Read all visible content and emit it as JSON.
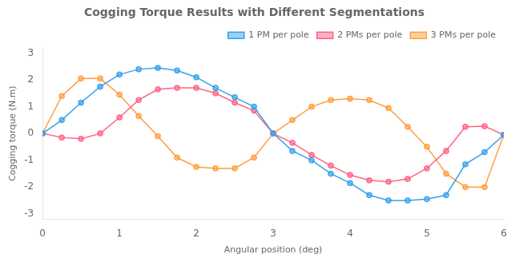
{
  "chart_data": {
    "type": "line",
    "title": "Cogging Torque Results with Different Segmentations",
    "x_label": "Angular position (deg)",
    "y_label": "Cogging torque (N.m)",
    "x": [
      0,
      0.25,
      0.5,
      0.75,
      1.0,
      1.25,
      1.5,
      1.75,
      2.0,
      2.25,
      2.5,
      2.75,
      3.0,
      3.25,
      3.5,
      3.75,
      4.0,
      4.25,
      4.5,
      4.75,
      5.0,
      5.25,
      5.5,
      5.75,
      6.0
    ],
    "series": [
      {
        "name": "1 PM per pole",
        "values": [
          0,
          0.5,
          1.15,
          1.75,
          2.2,
          2.4,
          2.45,
          2.35,
          2.1,
          1.7,
          1.35,
          1.0,
          0.0,
          -0.65,
          -1.0,
          -1.5,
          -1.85,
          -2.3,
          -2.5,
          -2.5,
          -2.45,
          -2.3,
          -1.15,
          -0.7,
          -0.05
        ]
      },
      {
        "name": "2 PMs per pole",
        "values": [
          0,
          -0.15,
          -0.2,
          0.0,
          0.6,
          1.25,
          1.65,
          1.7,
          1.7,
          1.5,
          1.15,
          0.85,
          0.0,
          -0.35,
          -0.8,
          -1.2,
          -1.55,
          -1.75,
          -1.8,
          -1.7,
          -1.3,
          -0.65,
          0.25,
          0.27,
          -0.05
        ]
      },
      {
        "name": "3 PMs per pole",
        "values": [
          0,
          1.4,
          2.05,
          2.05,
          1.45,
          0.65,
          -0.1,
          -0.9,
          -1.25,
          -1.3,
          -1.3,
          -0.9,
          0.0,
          0.5,
          1.0,
          1.25,
          1.3,
          1.25,
          0.95,
          0.25,
          -0.5,
          -1.5,
          -2.0,
          -2.0,
          -0.05
        ]
      }
    ],
    "xlim": [
      0,
      6
    ],
    "ylim": [
      -3.2,
      3.2
    ],
    "xticks": [
      0,
      1,
      2,
      3,
      4,
      5,
      6
    ],
    "yticks": [
      -3,
      -2,
      -1,
      0,
      1,
      2,
      3
    ],
    "marker": "o",
    "grid": false,
    "legend": "upper right"
  }
}
